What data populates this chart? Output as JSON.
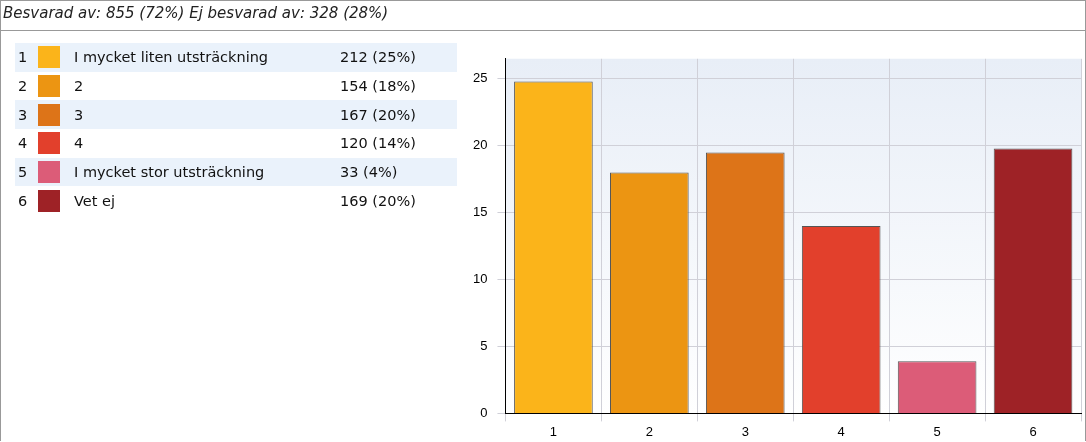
{
  "chart_data": {
    "type": "bar",
    "title": "Besvarad av: 855 (72%) Ej besvarad av: 328 (28%)",
    "categories": [
      "1",
      "2",
      "3",
      "4",
      "5",
      "6"
    ],
    "values": [
      24.8,
      18.0,
      19.5,
      14.0,
      3.9,
      19.8
    ],
    "colors": [
      "#fbb41a",
      "#ec9512",
      "#dd7418",
      "#e2402c",
      "#dc5c78",
      "#9e2226"
    ],
    "annotations": [
      "I mycket liten utsträckning",
      "212 (25%)",
      "2",
      "154 (18%)",
      "3",
      "167 (20%)",
      "4",
      "120 (14%)",
      "I mycket stor utsträckning",
      "33 (4%)",
      "Vet ej",
      "169 (20%)"
    ],
    "ylim": [
      0,
      26.5
    ],
    "yticks": [
      0,
      5,
      10,
      15,
      20,
      25
    ],
    "grid": true
  }
}
